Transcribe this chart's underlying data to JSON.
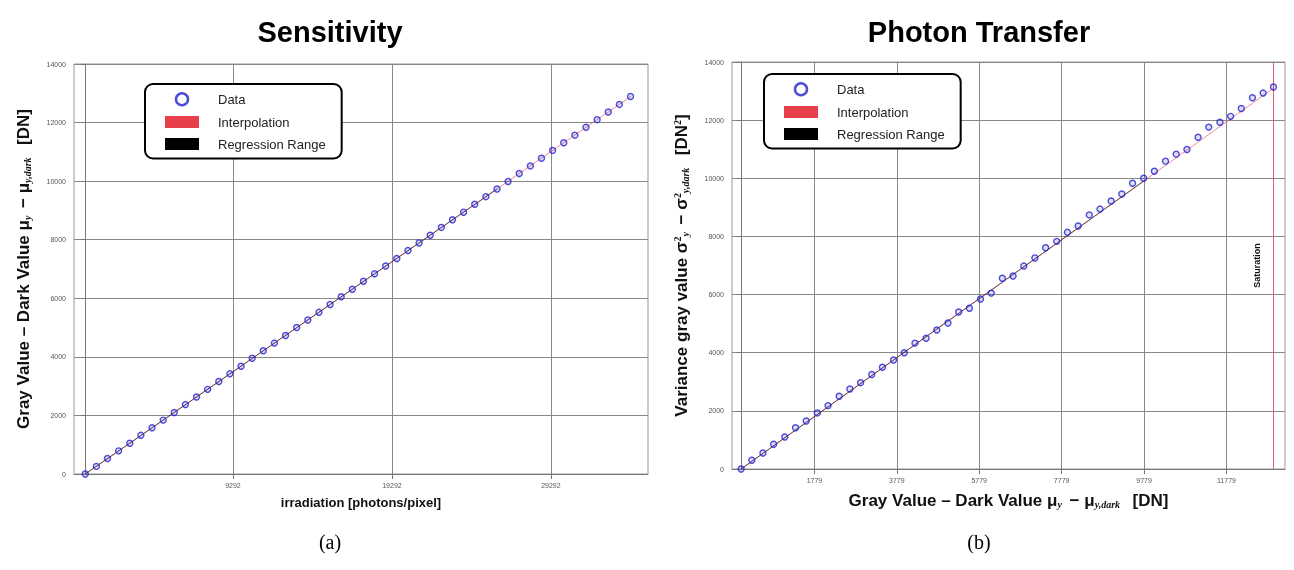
{
  "chart_data": [
    {
      "type": "scatter",
      "title": "Sensitivity",
      "xlabel": "irradiation [photons/pixel]",
      "ylabel": "Gray Value – Dark Value μ$_{y}$ − μ$_{y,dark}$  [DN]",
      "xlim": [
        -708,
        35400
      ],
      "xticks": [
        9292,
        19292,
        29292
      ],
      "ylim": [
        0,
        14000
      ],
      "yticks": [
        0,
        2000,
        4000,
        6000,
        8000,
        10000,
        12000,
        14000
      ],
      "grid": true,
      "legend": "top left",
      "annotations": [
        "(a)"
      ],
      "series": [
        {
          "name": "Data",
          "marker": "circle",
          "color": "#2020d0",
          "x": [
            0,
            700,
            1400,
            2100,
            2800,
            3500,
            4200,
            4900,
            5600,
            6300,
            7000,
            7700,
            8400,
            9100,
            9800,
            10500,
            11200,
            11900,
            12600,
            13300,
            14000,
            14700,
            15400,
            16100,
            16800,
            17500,
            18200,
            18900,
            19600,
            20300,
            21000,
            21700,
            22400,
            23100,
            23800,
            24500,
            25200,
            25900,
            26600,
            27300,
            28000,
            28700,
            29400,
            30100,
            30800,
            31500,
            32200,
            32900,
            33600,
            34300
          ],
          "values": [
            0,
            260,
            530,
            790,
            1050,
            1320,
            1580,
            1840,
            2100,
            2370,
            2630,
            2890,
            3160,
            3420,
            3680,
            3950,
            4210,
            4470,
            4730,
            5000,
            5260,
            5520,
            5790,
            6050,
            6310,
            6580,
            6840,
            7100,
            7360,
            7630,
            7890,
            8150,
            8420,
            8680,
            8940,
            9210,
            9470,
            9730,
            9990,
            10260,
            10520,
            10780,
            11050,
            11310,
            11570,
            11840,
            12100,
            12360,
            12620,
            12890
          ]
        },
        {
          "name": "Interpolation",
          "type": "line",
          "color": "#e8404a",
          "x": [
            0,
            34300
          ],
          "values": [
            0,
            12890
          ]
        },
        {
          "name": "Regression Range",
          "type": "line",
          "color": "#000000",
          "x": [
            0,
            25900
          ],
          "values": [
            0,
            9730
          ]
        }
      ]
    },
    {
      "type": "scatter",
      "title": "Photon Transfer",
      "xlabel": "Gray Value – Dark Value μ$_{y}$ − μ$_{y,dark}$  [DN]",
      "ylabel": "Variance gray value σ$^{2}$$_{y}$ − σ$^{2}$$_{y,dark}$  [DN$^{2}$]",
      "xlim": [
        -221,
        13200
      ],
      "xticks": [
        1779,
        3779,
        5779,
        7779,
        9779,
        11779
      ],
      "ylim": [
        0,
        14000
      ],
      "yticks": [
        0,
        2000,
        4000,
        6000,
        8000,
        10000,
        12000,
        14000
      ],
      "grid": true,
      "legend": "top left",
      "annotations": [
        "(b)"
      ],
      "ref_lines": [
        {
          "axis": "x",
          "value": 12920,
          "label": "Saturation",
          "color": "#e06070"
        }
      ],
      "series": [
        {
          "name": "Data",
          "marker": "circle",
          "color": "#2020d0",
          "x": [
            0,
            260,
            530,
            790,
            1060,
            1320,
            1580,
            1850,
            2110,
            2380,
            2640,
            2900,
            3170,
            3430,
            3700,
            3960,
            4220,
            4490,
            4750,
            5020,
            5280,
            5540,
            5810,
            6070,
            6340,
            6600,
            6860,
            7130,
            7390,
            7660,
            7920,
            8180,
            8450,
            8710,
            8980,
            9240,
            9500,
            9770,
            10030,
            10300,
            10560,
            10820,
            11090,
            11350,
            11620,
            11880,
            12140,
            12410,
            12670,
            12920
          ],
          "values": [
            0,
            300,
            550,
            850,
            1100,
            1420,
            1650,
            1930,
            2180,
            2500,
            2750,
            2970,
            3250,
            3500,
            3750,
            4000,
            4330,
            4500,
            4780,
            5020,
            5400,
            5530,
            5850,
            6050,
            6560,
            6640,
            6980,
            7260,
            7610,
            7830,
            8140,
            8360,
            8740,
            8940,
            9220,
            9460,
            9830,
            10000,
            10240,
            10590,
            10830,
            10990,
            11410,
            11760,
            11930,
            12130,
            12400,
            12770,
            12930,
            13140
          ]
        },
        {
          "name": "Interpolation",
          "type": "line",
          "color": "#e8404a",
          "x": [
            0,
            12920
          ],
          "values": [
            0,
            13100
          ]
        },
        {
          "name": "Regression Range",
          "type": "line",
          "color": "#000000",
          "x": [
            0,
            9770
          ],
          "values": [
            0,
            9900
          ]
        }
      ]
    }
  ]
}
